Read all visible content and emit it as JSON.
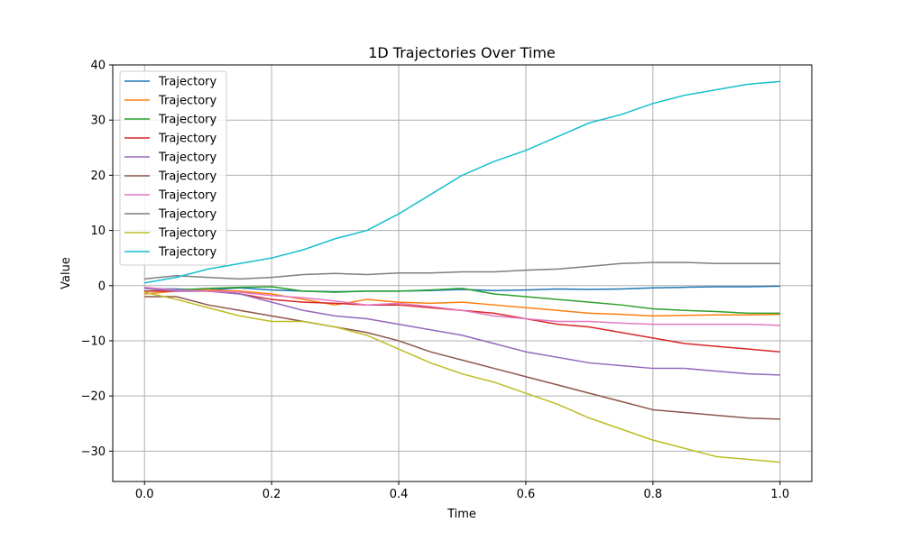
{
  "chart_data": {
    "type": "line",
    "title": "1D Trajectories Over Time",
    "xlabel": "Time",
    "ylabel": "Value",
    "xlim": [
      -0.05,
      1.05
    ],
    "ylim": [
      -35.5,
      40
    ],
    "xticks": [
      0.0,
      0.2,
      0.4,
      0.6,
      0.8,
      1.0
    ],
    "xtick_labels": [
      "0.0",
      "0.2",
      "0.4",
      "0.6",
      "0.8",
      "1.0"
    ],
    "yticks": [
      -30,
      -20,
      -10,
      0,
      10,
      20,
      30,
      40
    ],
    "ytick_labels": [
      "−30",
      "−20",
      "−10",
      "0",
      "10",
      "20",
      "30",
      "40"
    ],
    "grid": true,
    "legend_position": "top-left",
    "x": [
      0.0,
      0.05,
      0.1,
      0.15,
      0.2,
      0.25,
      0.3,
      0.35,
      0.4,
      0.45,
      0.5,
      0.55,
      0.6,
      0.65,
      0.7,
      0.75,
      0.8,
      0.85,
      0.9,
      0.95,
      1.0
    ],
    "series": [
      {
        "name": "Trajectory",
        "color": "#1f77b4",
        "values": [
          -0.5,
          -0.6,
          -0.8,
          -0.4,
          -0.8,
          -1.0,
          -1.1,
          -1.0,
          -1.0,
          -0.9,
          -0.7,
          -0.9,
          -0.8,
          -0.6,
          -0.7,
          -0.6,
          -0.4,
          -0.3,
          -0.2,
          -0.2,
          -0.1
        ]
      },
      {
        "name": "Trajectory",
        "color": "#ff7f0e",
        "values": [
          -1.5,
          -1.0,
          -0.8,
          -1.0,
          -1.5,
          -2.5,
          -3.5,
          -2.5,
          -3.0,
          -3.2,
          -3.0,
          -3.5,
          -4.0,
          -4.5,
          -5.0,
          -5.2,
          -5.5,
          -5.4,
          -5.3,
          -5.3,
          -5.2
        ]
      },
      {
        "name": "Trajectory",
        "color": "#2ca02c",
        "values": [
          -1.0,
          -0.8,
          -0.5,
          -0.3,
          -0.2,
          -1.0,
          -1.2,
          -1.0,
          -1.0,
          -0.8,
          -0.5,
          -1.5,
          -2.0,
          -2.5,
          -3.0,
          -3.5,
          -4.2,
          -4.5,
          -4.7,
          -5.0,
          -5.0
        ]
      },
      {
        "name": "Trajectory",
        "color": "#d62728",
        "values": [
          -1.0,
          -1.0,
          -1.0,
          -1.5,
          -2.5,
          -3.0,
          -3.2,
          -3.5,
          -3.5,
          -4.0,
          -4.5,
          -5.0,
          -6.0,
          -7.0,
          -7.5,
          -8.5,
          -9.5,
          -10.5,
          -11.0,
          -11.5,
          -12.0
        ]
      },
      {
        "name": "Trajectory",
        "color": "#9467bd",
        "values": [
          -0.5,
          -1.0,
          -1.0,
          -1.5,
          -3.0,
          -4.5,
          -5.5,
          -6.0,
          -7.0,
          -8.0,
          -9.0,
          -10.5,
          -12.0,
          -13.0,
          -14.0,
          -14.5,
          -15.0,
          -15.0,
          -15.5,
          -16.0,
          -16.2
        ]
      },
      {
        "name": "Trajectory",
        "color": "#8c564b",
        "values": [
          -2.0,
          -2.0,
          -3.5,
          -4.5,
          -5.5,
          -6.5,
          -7.5,
          -8.5,
          -10.0,
          -12.0,
          -13.5,
          -15.0,
          -16.5,
          -18.0,
          -19.5,
          -21.0,
          -22.5,
          -23.0,
          -23.5,
          -24.0,
          -24.2
        ]
      },
      {
        "name": "Trajectory",
        "color": "#e377c2",
        "values": [
          -0.3,
          -0.8,
          -1.0,
          -1.2,
          -1.8,
          -2.2,
          -2.8,
          -3.5,
          -3.2,
          -3.8,
          -4.5,
          -5.5,
          -6.0,
          -6.5,
          -6.5,
          -6.8,
          -7.0,
          -7.0,
          -7.0,
          -7.0,
          -7.2
        ]
      },
      {
        "name": "Trajectory",
        "color": "#7f7f7f",
        "values": [
          1.2,
          1.8,
          1.5,
          1.2,
          1.5,
          2.0,
          2.2,
          2.0,
          2.3,
          2.3,
          2.5,
          2.5,
          2.8,
          3.0,
          3.5,
          4.0,
          4.2,
          4.2,
          4.0,
          4.0,
          4.0
        ]
      },
      {
        "name": "Trajectory",
        "color": "#bcbd22",
        "values": [
          -1.2,
          -2.5,
          -4.0,
          -5.5,
          -6.5,
          -6.5,
          -7.5,
          -9.0,
          -11.5,
          -14.0,
          -16.0,
          -17.5,
          -19.5,
          -21.5,
          -24.0,
          -26.0,
          -28.0,
          -29.5,
          -31.0,
          -31.5,
          -32.0
        ]
      },
      {
        "name": "Trajectory",
        "color": "#17becf",
        "values": [
          0.5,
          1.5,
          3.0,
          4.0,
          5.0,
          6.5,
          8.5,
          10.0,
          13.0,
          16.5,
          20.0,
          22.5,
          24.5,
          27.0,
          29.5,
          31.0,
          33.0,
          34.5,
          35.5,
          36.5,
          37.0
        ]
      }
    ]
  }
}
